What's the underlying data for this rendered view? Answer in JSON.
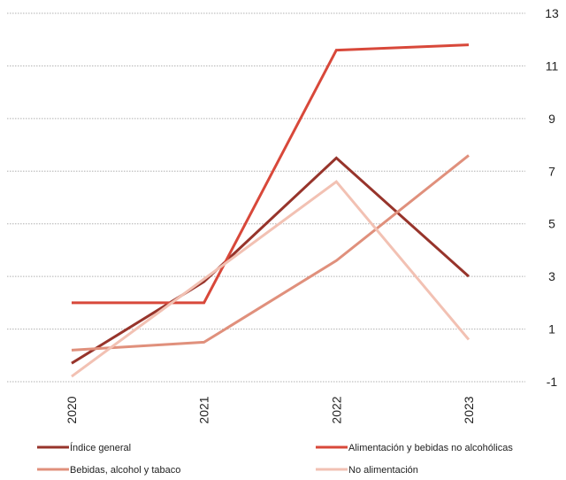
{
  "chart_data": {
    "type": "line",
    "title": "",
    "xlabel": "",
    "ylabel": "",
    "categories": [
      "2020",
      "2021",
      "2022",
      "2023"
    ],
    "ylim": [
      -1,
      13
    ],
    "yticks": [
      -1,
      1,
      3,
      5,
      7,
      9,
      11,
      13
    ],
    "grid": true,
    "y_axis_side": "right",
    "legend_position": "bottom",
    "series": [
      {
        "name": "Índice general",
        "color": "#97342b",
        "values": [
          -0.3,
          2.8,
          7.5,
          3.0
        ]
      },
      {
        "name": "Alimentación y bebidas no alcohólicas",
        "color": "#d8483a",
        "values": [
          2.0,
          2.0,
          11.6,
          11.8
        ]
      },
      {
        "name": "Bebidas, alcohol y tabaco",
        "color": "#e0907c",
        "values": [
          0.2,
          0.5,
          3.6,
          7.6
        ]
      },
      {
        "name": "No alimentación",
        "color": "#f2c1b3",
        "values": [
          -0.8,
          2.9,
          6.6,
          0.6
        ]
      }
    ]
  }
}
